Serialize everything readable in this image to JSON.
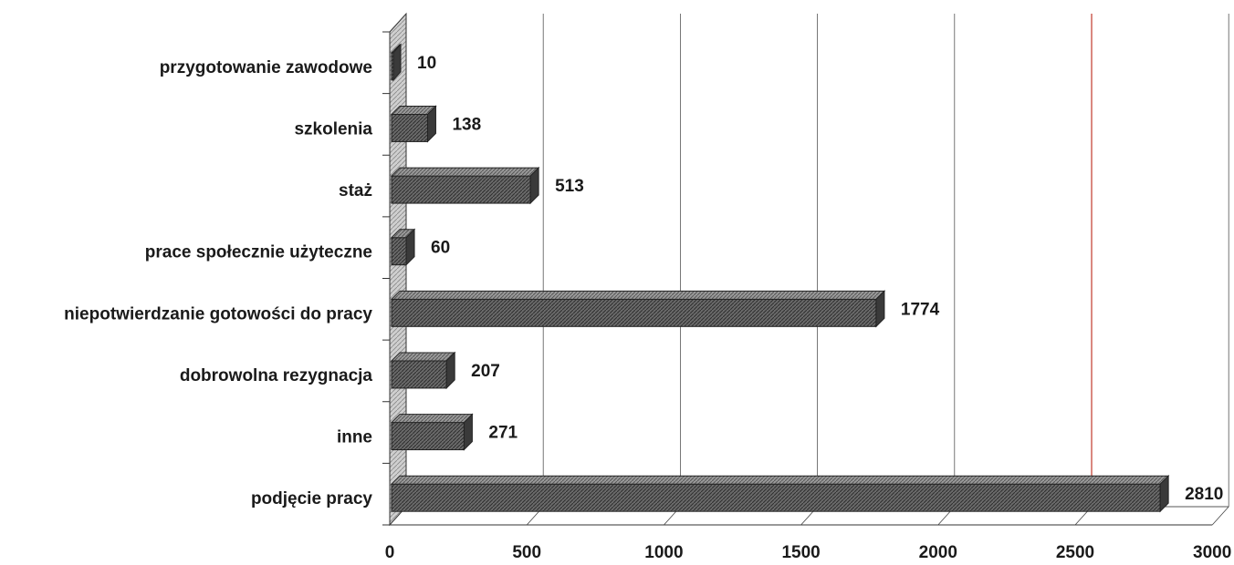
{
  "chart_data": {
    "type": "bar",
    "orientation": "horizontal",
    "three_d": true,
    "categories": [
      "przygotowanie zawodowe",
      "szkolenia",
      "staż",
      "prace społecznie użyteczne",
      "niepotwierdzanie gotowości do pracy",
      "dobrowolna rezygnacja",
      "inne",
      "podjęcie pracy"
    ],
    "values": [
      10,
      138,
      513,
      60,
      1774,
      207,
      271,
      2810
    ],
    "data_labels": [
      "10",
      "138",
      "513",
      "60",
      "1774",
      "207",
      "271",
      "2810"
    ],
    "xlim": [
      0,
      3000
    ],
    "xticks": [
      0,
      500,
      1000,
      1500,
      2000,
      2500,
      3000
    ],
    "xtick_labels": [
      "0",
      "500",
      "1000",
      "1500",
      "2000",
      "2500",
      "3000"
    ],
    "grid": true,
    "legend": "none",
    "colors": {
      "bar_front": "#5a5a5a",
      "bar_top": "#8c8c8c",
      "bar_side": "#3a3a3a",
      "wall": "#bdbdbd",
      "gridline": "#555555",
      "highlight_line": "#c0392b"
    }
  }
}
